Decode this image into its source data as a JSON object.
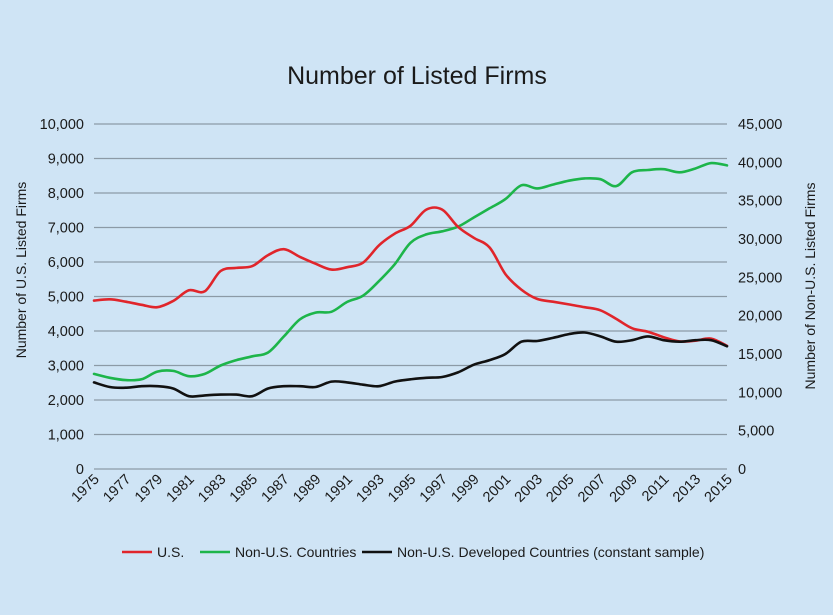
{
  "chart_data": {
    "type": "line",
    "title": "Number of Listed Firms",
    "ylabel": "Number of U.S. Listed Firms",
    "y2label": "Number of Non-U.S. Listed Firms",
    "ylim": [
      0,
      10000
    ],
    "y2lim": [
      0,
      45000
    ],
    "yticks": [
      "0",
      "1,000",
      "2,000",
      "3,000",
      "4,000",
      "5,000",
      "6,000",
      "7,000",
      "8,000",
      "9,000",
      "10,000"
    ],
    "y2ticks": [
      "0",
      "5,000",
      "10,000",
      "15,000",
      "20,000",
      "25,000",
      "30,000",
      "35,000",
      "40,000",
      "45,000"
    ],
    "xtick_labels": [
      "1975",
      "1977",
      "1979",
      "1981",
      "1983",
      "1985",
      "1987",
      "1989",
      "1991",
      "1993",
      "1995",
      "1997",
      "1999",
      "2001",
      "2003",
      "2005",
      "2007",
      "2009",
      "2011",
      "2013",
      "2015"
    ],
    "grid": true,
    "legend": "bottom",
    "x": [
      1975,
      1976,
      1977,
      1978,
      1979,
      1980,
      1981,
      1982,
      1983,
      1984,
      1985,
      1986,
      1987,
      1988,
      1989,
      1990,
      1991,
      1992,
      1993,
      1994,
      1995,
      1996,
      1997,
      1998,
      1999,
      2000,
      2001,
      2002,
      2003,
      2004,
      2005,
      2006,
      2007,
      2008,
      2009,
      2010,
      2011,
      2012,
      2013,
      2014,
      2015
    ],
    "series": [
      {
        "name": "U.S.",
        "axis": "left",
        "color": "#e0252b",
        "values": [
          4880,
          4920,
          4850,
          4760,
          4690,
          4870,
          5180,
          5150,
          5740,
          5830,
          5880,
          6200,
          6370,
          6150,
          5950,
          5780,
          5850,
          5980,
          6480,
          6820,
          7050,
          7520,
          7520,
          7020,
          6700,
          6420,
          5650,
          5200,
          4930,
          4850,
          4770,
          4690,
          4600,
          4350,
          4080,
          3980,
          3820,
          3700,
          3720,
          3780,
          3570
        ]
      },
      {
        "name": "Non-U.S. Countries",
        "axis": "right",
        "color": "#1db54a",
        "values": [
          12400,
          11900,
          11600,
          11700,
          12700,
          12800,
          12100,
          12400,
          13500,
          14200,
          14700,
          15200,
          17300,
          19500,
          20400,
          20500,
          21800,
          22600,
          24500,
          26700,
          29500,
          30600,
          31000,
          31600,
          32800,
          34000,
          35200,
          37000,
          36600,
          37100,
          37600,
          37900,
          37800,
          36900,
          38700,
          39000,
          39100,
          38700,
          39200,
          39900,
          39600
        ]
      },
      {
        "name": "Non-U.S. Developed Countries (constant sample)",
        "axis": "right",
        "color": "#111111",
        "values": [
          11300,
          10700,
          10600,
          10800,
          10800,
          10500,
          9500,
          9600,
          9700,
          9700,
          9500,
          10500,
          10800,
          10800,
          10700,
          11400,
          11300,
          11000,
          10800,
          11400,
          11700,
          11900,
          12000,
          12600,
          13600,
          14200,
          15000,
          16600,
          16700,
          17100,
          17600,
          17800,
          17300,
          16600,
          16800,
          17300,
          16800,
          16600,
          16800,
          16800,
          16000
        ]
      }
    ]
  }
}
